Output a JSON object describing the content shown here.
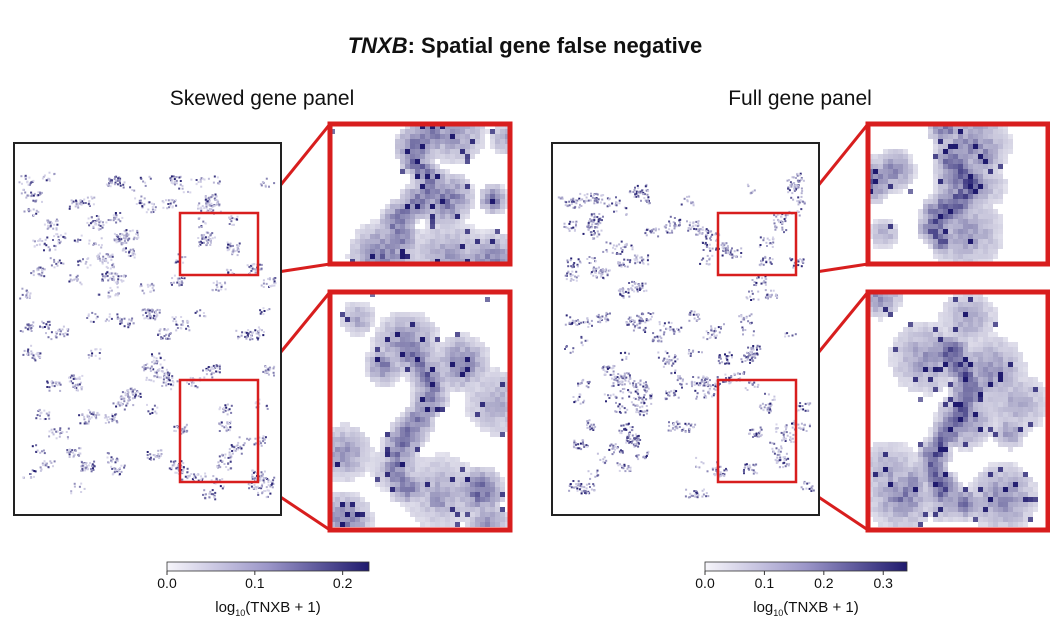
{
  "title": {
    "gene": "TNXB",
    "rest": ": Spatial gene false negative"
  },
  "panels": [
    {
      "label": "Skewed gene panel",
      "colorbar": {
        "ticks": [
          "0.0",
          "0.1",
          "0.2"
        ],
        "tick_values": [
          0.0,
          0.1,
          0.2
        ],
        "max": 0.23,
        "label_prefix": "log",
        "label_sub": "10",
        "label_suffix": "(TNXB + 1)"
      },
      "seed": 11
    },
    {
      "label": "Full gene panel",
      "colorbar": {
        "ticks": [
          "0.0",
          "0.1",
          "0.2",
          "0.3"
        ],
        "tick_values": [
          0.0,
          0.1,
          0.2,
          0.3
        ],
        "max": 0.34,
        "label_prefix": "log",
        "label_sub": "10",
        "label_suffix": "(TNXB + 1)"
      },
      "seed": 29
    }
  ],
  "colors": {
    "inset_border": "#d81e1e",
    "frame": "#222222",
    "low": "#f4f3f8",
    "high": "#1f1a6e"
  }
}
